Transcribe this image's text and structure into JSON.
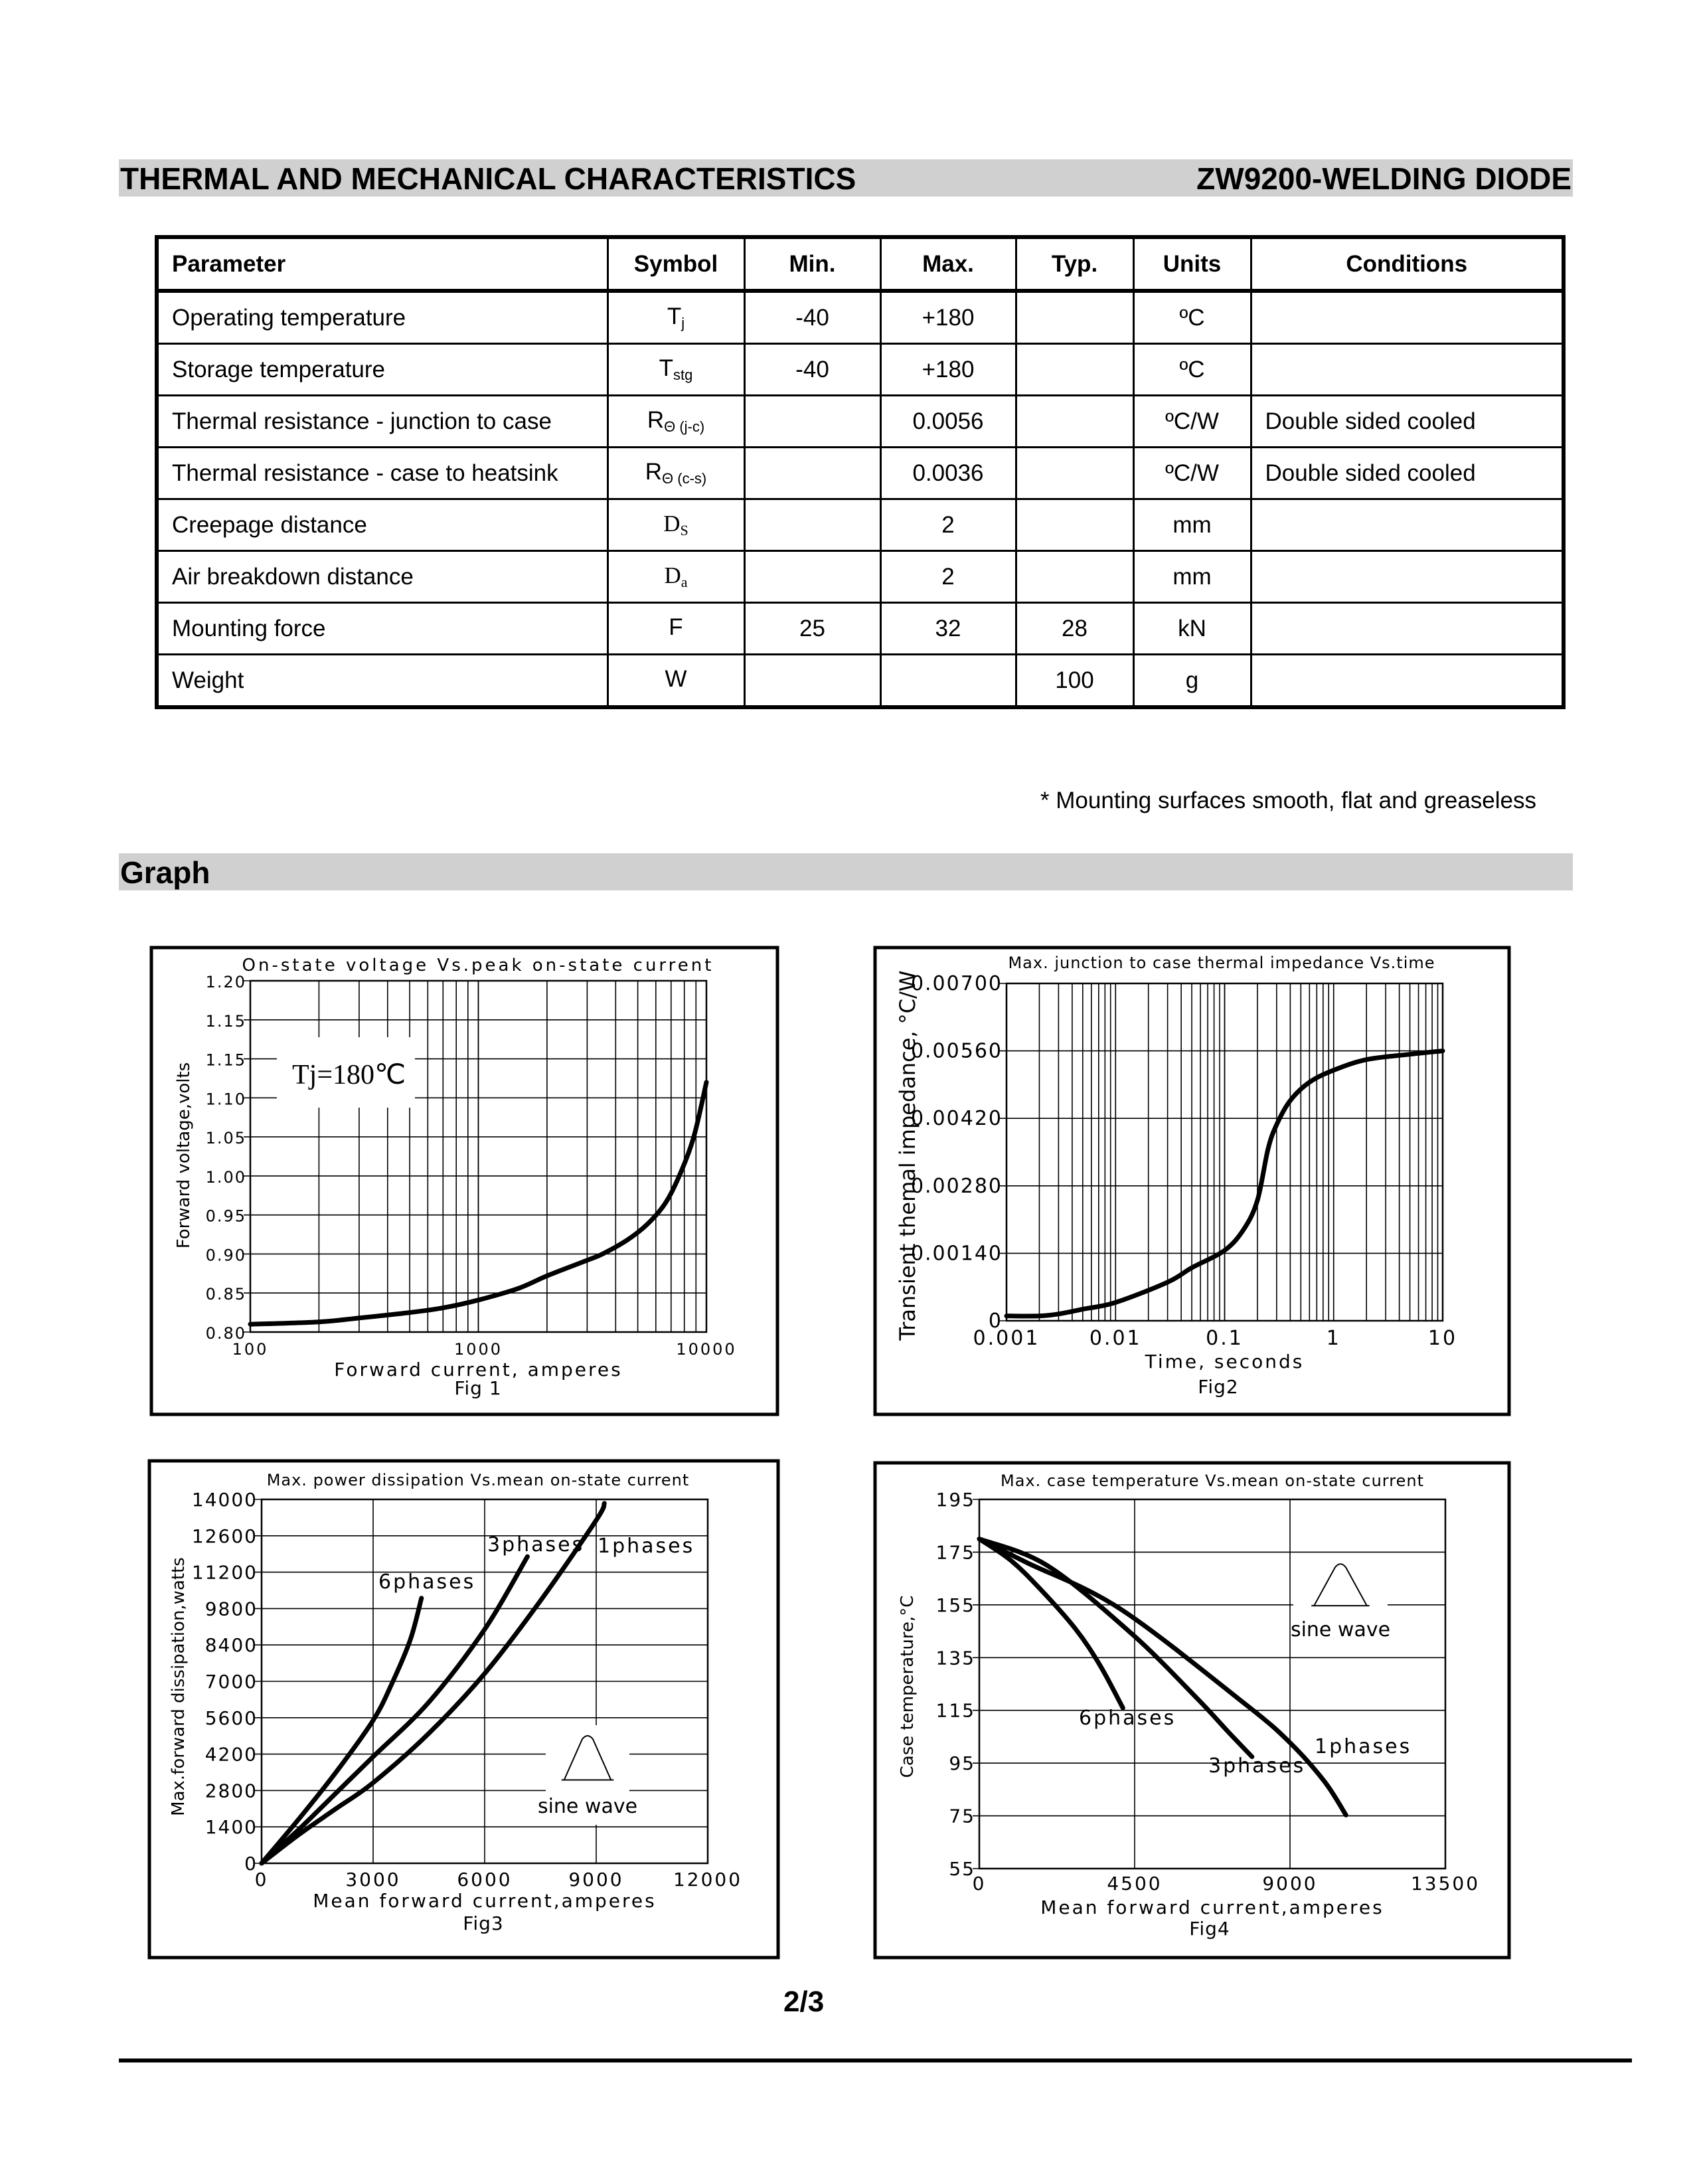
{
  "header": {
    "title": "THERMAL AND MECHANICAL CHARACTERISTICS",
    "product": "ZW9200-WELDING DIODE"
  },
  "table": {
    "columns": [
      "Parameter",
      "Symbol",
      "Min.",
      "Max.",
      "Typ.",
      "Units",
      "Conditions"
    ],
    "rows": [
      {
        "parameter": "Operating temperature",
        "symbol": "T",
        "symbol_sub": "j",
        "min": "-40",
        "max": "+180",
        "typ": "",
        "units": "ºC",
        "conditions": ""
      },
      {
        "parameter": "Storage temperature",
        "symbol": "T",
        "symbol_sub": "stg",
        "min": "-40",
        "max": "+180",
        "typ": "",
        "units": "ºC",
        "conditions": ""
      },
      {
        "parameter": "Thermal resistance - junction to case",
        "symbol": "R",
        "symbol_sub": "Θ (j-c)",
        "min": "",
        "max": "0.0056",
        "typ": "",
        "units": "ºC/W",
        "conditions": "Double sided cooled"
      },
      {
        "parameter": "Thermal resistance - case to heatsink",
        "symbol": "R",
        "symbol_sub": "Θ (c-s)",
        "min": "",
        "max": "0.0036",
        "typ": "",
        "units": "ºC/W",
        "conditions": "Double sided cooled"
      },
      {
        "parameter": "Creepage distance",
        "symbol": "D",
        "symbol_sub": "S",
        "min": "",
        "max": "2",
        "typ": "",
        "units": "mm",
        "conditions": ""
      },
      {
        "parameter": "Air breakdown distance",
        "symbol": "D",
        "symbol_sub": "a",
        "min": "",
        "max": "2",
        "typ": "",
        "units": "mm",
        "conditions": ""
      },
      {
        "parameter": "Mounting force",
        "symbol": "F",
        "symbol_sub": "",
        "min": "25",
        "max": "32",
        "typ": "28",
        "units": "kN",
        "conditions": ""
      },
      {
        "parameter": "Weight",
        "symbol": "W",
        "symbol_sub": "",
        "min": "",
        "max": "",
        "typ": "100",
        "units": "g",
        "conditions": ""
      }
    ]
  },
  "note": "* Mounting surfaces smooth, flat and greaseless",
  "graph_section": {
    "title": "Graph"
  },
  "footer": {
    "page": "2/3"
  },
  "chart_data": [
    {
      "type": "line",
      "title": "On-state voltage Vs.peak on-state current",
      "xlabel": "Forward current,  amperes",
      "ylabel": "Forward voltage,volts",
      "caption": "Fig 1",
      "annotation": "Tj=180℃",
      "xscale": "log",
      "xlim": [
        100,
        10000
      ],
      "xticks": [
        100,
        1000,
        10000
      ],
      "xtick_labels": [
        "100",
        "1000",
        "10000"
      ],
      "ytick_labels": [
        "0.80",
        "0.85",
        "0.90",
        "0.95",
        "1.00",
        "1.05",
        "1.10",
        "1.15",
        "1.15",
        "1.20"
      ],
      "ylim": [
        0.8,
        1.2
      ],
      "grid": true,
      "series": [
        {
          "x": [
            100,
            200,
            300,
            500,
            700,
            1000,
            1500,
            2000,
            3000,
            3500,
            4500,
            5500,
            6600,
            7600,
            8800,
            10000
          ],
          "y": [
            0.81,
            0.813,
            0.818,
            0.825,
            0.831,
            0.841,
            0.856,
            0.872,
            0.892,
            0.9,
            0.918,
            0.938,
            0.965,
            1.0,
            1.05,
            1.12
          ]
        }
      ]
    },
    {
      "type": "line",
      "title": "Max. junction to case thermal impedance Vs.time",
      "xlabel": "Time,  seconds",
      "ylabel": "Transient themal impedance,  °C/W",
      "caption": "Fig2",
      "xscale": "log",
      "xlim": [
        0.001,
        10
      ],
      "xticks": [
        0.001,
        0.01,
        0.1,
        1,
        10
      ],
      "xtick_labels": [
        "0.001",
        "0.01",
        "0.1",
        "1",
        "10"
      ],
      "ylim": [
        0,
        0.007
      ],
      "yticks": [
        0,
        0.0014,
        0.0028,
        0.0042,
        0.0056,
        0.007
      ],
      "ytick_labels": [
        "0",
        "0.00140",
        "0.00280",
        "0.00420",
        "0.00560",
        "0.00700"
      ],
      "grid": true,
      "series": [
        {
          "x": [
            0.001,
            0.002,
            0.003,
            0.005,
            0.01,
            0.03,
            0.05,
            0.1,
            0.15,
            0.2,
            0.25,
            0.3,
            0.4,
            0.6,
            1,
            2,
            5,
            10
          ],
          "y": [
            0.0001,
            0.0001,
            0.00014,
            0.00024,
            0.00038,
            0.0008,
            0.0011,
            0.00146,
            0.0019,
            0.0025,
            0.00356,
            0.00407,
            0.00457,
            0.00495,
            0.0052,
            0.00542,
            0.00553,
            0.0056
          ]
        }
      ]
    },
    {
      "type": "line",
      "title": "Max. power dissipation Vs.mean on-state current",
      "xlabel": "Mean forward current,amperes",
      "ylabel": "Max.forward dissipation,watts",
      "caption": "Fig3",
      "inset_label": "sine wave",
      "xlim": [
        0,
        12000
      ],
      "xticks": [
        0,
        3000,
        6000,
        9000,
        12000
      ],
      "xtick_labels": [
        "0",
        "3000",
        "6000",
        "9000",
        "12000"
      ],
      "ylim": [
        0,
        14000
      ],
      "yticks": [
        0,
        1400,
        2800,
        4200,
        5600,
        7000,
        8400,
        9800,
        11200,
        12600,
        14000
      ],
      "ytick_labels": [
        "0",
        "1400",
        "2800",
        "4200",
        "5600",
        "7000",
        "8400",
        "9800",
        "11200",
        "12600",
        "14000"
      ],
      "grid": true,
      "series": [
        {
          "name": "6phases",
          "x": [
            0,
            1000,
            2000,
            3000,
            3500,
            4000,
            4300
          ],
          "y": [
            0,
            1700,
            3500,
            5500,
            6900,
            8600,
            10200
          ]
        },
        {
          "name": "3phases",
          "x": [
            0,
            1000,
            2000,
            3000,
            4500,
            6000,
            7150
          ],
          "y": [
            0,
            1300,
            2700,
            4100,
            6200,
            9000,
            11800
          ]
        },
        {
          "name": "1phases",
          "x": [
            0,
            1000,
            2000,
            3000,
            4500,
            6000,
            7500,
            9000,
            9220
          ],
          "y": [
            0,
            1100,
            2100,
            3100,
            5000,
            7300,
            10100,
            13200,
            13850
          ]
        }
      ]
    },
    {
      "type": "line",
      "title": "Max. case temperature Vs.mean on-state current",
      "xlabel": "Mean forward current,amperes",
      "ylabel": "Case temperature,°C",
      "caption": "Fig4",
      "inset_label": "sine wave",
      "xlim": [
        0,
        13500
      ],
      "xticks": [
        0,
        4500,
        9000,
        13500
      ],
      "xtick_labels": [
        "0",
        "4500",
        "9000",
        "13500"
      ],
      "ylim": [
        55,
        195
      ],
      "yticks": [
        55,
        75,
        95,
        115,
        135,
        155,
        175,
        195
      ],
      "ytick_labels": [
        "55",
        "75",
        "95",
        "115",
        "135",
        "155",
        "175",
        "195"
      ],
      "grid": true,
      "series": [
        {
          "name": "6phases",
          "x": [
            0,
            900,
            1730,
            2780,
            3500,
            4160
          ],
          "y": [
            180,
            172,
            161.5,
            146,
            132,
            115.9
          ]
        },
        {
          "name": "3phases",
          "x": [
            0,
            1960,
            4420,
            6290,
            7200,
            7900
          ],
          "y": [
            180,
            170,
            144,
            119.8,
            107,
            97.4
          ]
        },
        {
          "name": "1phases",
          "x": [
            0,
            1380,
            4070,
            7700,
            8980,
            10000,
            10620
          ],
          "y": [
            180,
            171,
            153.6,
            117.4,
            103,
            88,
            75.3
          ]
        }
      ]
    }
  ],
  "colors": {
    "band": "#d0d0d0",
    "ink": "#000000"
  }
}
